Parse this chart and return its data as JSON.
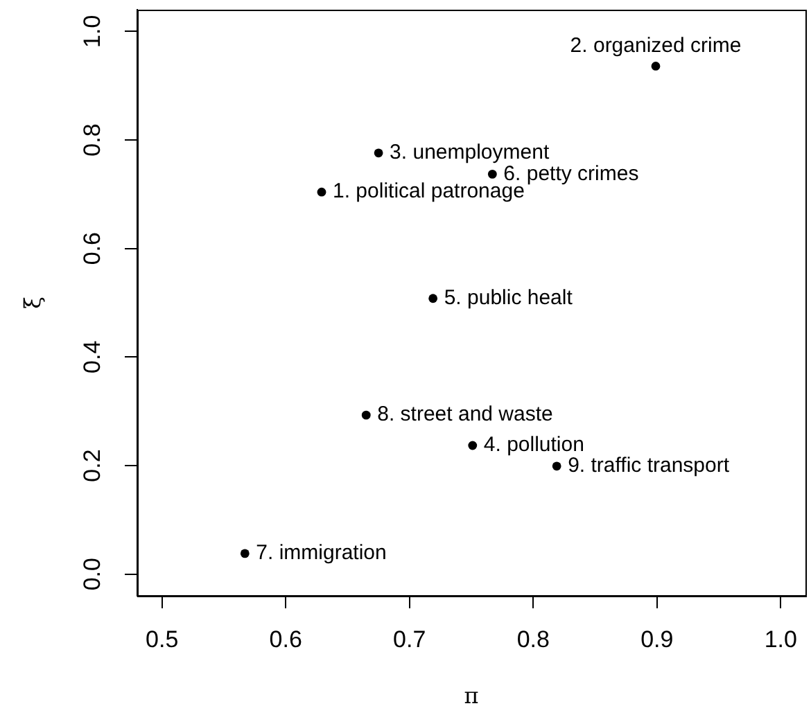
{
  "chart_data": {
    "type": "scatter",
    "xlabel": "π",
    "ylabel": "ξ",
    "x": [
      0.629,
      0.899,
      0.675,
      0.751,
      0.719,
      0.767,
      0.567,
      0.665,
      0.819
    ],
    "values": [
      0.704,
      0.936,
      0.776,
      0.237,
      0.508,
      0.737,
      0.038,
      0.293,
      0.199
    ],
    "color": "#000000",
    "marker": "circle",
    "grid": false,
    "xlim": [
      0.48,
      1.02
    ],
    "xticks": [
      0.5,
      0.6,
      0.7,
      0.8,
      0.9,
      {
        "value": 1,
        "label": "1.0"
      }
    ],
    "ylim": [
      -0.04,
      1.04
    ],
    "yticks": [
      {
        "value": 0,
        "label": "0.0"
      },
      0.2,
      0.4,
      0.6,
      0.8,
      {
        "value": 1,
        "label": "1.0"
      }
    ],
    "annotations": [
      {
        "text": "1. political patronage",
        "x": 0.629,
        "y": 0.704
      },
      {
        "text": "2. organized crime",
        "x": 0.899,
        "y": 0.936
      },
      {
        "text": "3. unemployment",
        "x": 0.675,
        "y": 0.776
      },
      {
        "text": "4. pollution",
        "x": 0.751,
        "y": 0.237
      },
      {
        "text": "5. public healt",
        "x": 0.719,
        "y": 0.508
      },
      {
        "text": "6. petty crimes",
        "x": 0.767,
        "y": 0.737
      },
      {
        "text": "7. immigration",
        "x": 0.567,
        "y": 0.038
      },
      {
        "text": "8. street and waste",
        "x": 0.665,
        "y": 0.293
      },
      {
        "text": "9. traffic transport",
        "x": 0.819,
        "y": 0.199
      }
    ]
  }
}
